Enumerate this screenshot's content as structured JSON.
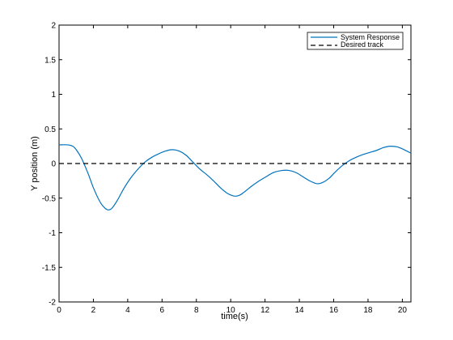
{
  "chart_data": {
    "type": "line",
    "xlabel": "time(s)",
    "ylabel": "Y position (m)",
    "xlim": [
      0,
      20.5
    ],
    "ylim": [
      -2,
      2
    ],
    "xticks": [
      0,
      2,
      4,
      6,
      8,
      10,
      12,
      14,
      16,
      18,
      20
    ],
    "yticks": [
      -2,
      -1.5,
      -1,
      -0.5,
      0,
      0.5,
      1,
      1.5,
      2
    ],
    "xtick_labels": [
      "0",
      "2",
      "4",
      "6",
      "8",
      "10",
      "12",
      "14",
      "16",
      "18",
      "20"
    ],
    "ytick_labels": [
      "-2",
      "-1.5",
      "-1",
      "-0.5",
      "0",
      "0.5",
      "1",
      "1.5",
      "2"
    ],
    "grid": false,
    "legend_position": "top-right",
    "series": [
      {
        "name": "System Response",
        "color": "#0072BD",
        "style": "solid",
        "x": [
          0,
          0.5,
          0.8,
          1.0,
          1.3,
          1.7,
          2.0,
          2.4,
          2.7,
          2.9,
          3.1,
          3.4,
          3.8,
          4.2,
          4.6,
          5.0,
          5.4,
          5.8,
          6.2,
          6.6,
          7.0,
          7.4,
          7.8,
          8.2,
          8.6,
          9.0,
          9.4,
          9.8,
          10.2,
          10.5,
          10.8,
          11.2,
          11.6,
          12.0,
          12.5,
          13.0,
          13.4,
          13.8,
          14.2,
          14.6,
          15.0,
          15.3,
          15.7,
          16.1,
          16.5,
          16.9,
          17.3,
          17.7,
          18.1,
          18.5,
          18.9,
          19.3,
          19.7,
          20.1,
          20.5
        ],
        "y": [
          0.27,
          0.27,
          0.25,
          0.2,
          0.08,
          -0.15,
          -0.35,
          -0.56,
          -0.65,
          -0.67,
          -0.64,
          -0.53,
          -0.35,
          -0.2,
          -0.08,
          0.02,
          0.09,
          0.14,
          0.18,
          0.2,
          0.18,
          0.12,
          0.02,
          -0.08,
          -0.16,
          -0.25,
          -0.35,
          -0.43,
          -0.47,
          -0.46,
          -0.41,
          -0.33,
          -0.26,
          -0.2,
          -0.13,
          -0.1,
          -0.1,
          -0.13,
          -0.19,
          -0.25,
          -0.29,
          -0.28,
          -0.22,
          -0.12,
          -0.03,
          0.04,
          0.09,
          0.13,
          0.16,
          0.19,
          0.23,
          0.25,
          0.24,
          0.2,
          0.15
        ]
      },
      {
        "name": "Desired track",
        "color": "#000000",
        "style": "dashed",
        "x": [
          0,
          20.5
        ],
        "y": [
          0,
          0
        ]
      }
    ]
  }
}
